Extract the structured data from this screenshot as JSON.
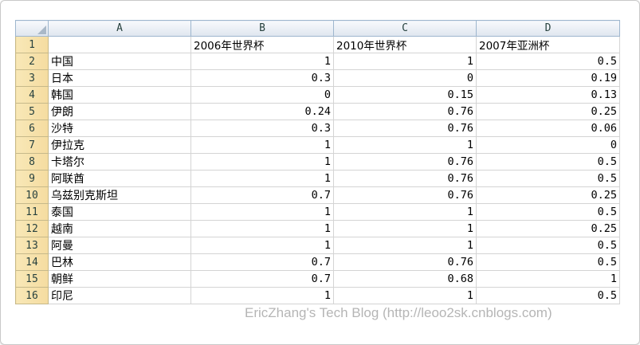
{
  "columns": [
    "A",
    "B",
    "C",
    "D"
  ],
  "header_row": {
    "row_number": "1",
    "cells": [
      "",
      "2006年世界杯",
      "2010年世界杯",
      "2007年亚洲杯"
    ]
  },
  "rows": [
    {
      "n": "2",
      "a": "中国",
      "b": "1",
      "c": "1",
      "d": "0.5"
    },
    {
      "n": "3",
      "a": "日本",
      "b": "0.3",
      "c": "0",
      "d": "0.19"
    },
    {
      "n": "4",
      "a": "韩国",
      "b": "0",
      "c": "0.15",
      "d": "0.13"
    },
    {
      "n": "5",
      "a": "伊朗",
      "b": "0.24",
      "c": "0.76",
      "d": "0.25"
    },
    {
      "n": "6",
      "a": "沙特",
      "b": "0.3",
      "c": "0.76",
      "d": "0.06"
    },
    {
      "n": "7",
      "a": "伊拉克",
      "b": "1",
      "c": "1",
      "d": "0"
    },
    {
      "n": "8",
      "a": "卡塔尔",
      "b": "1",
      "c": "0.76",
      "d": "0.5"
    },
    {
      "n": "9",
      "a": "阿联酋",
      "b": "1",
      "c": "0.76",
      "d": "0.5"
    },
    {
      "n": "10",
      "a": "乌兹别克斯坦",
      "b": "0.7",
      "c": "0.76",
      "d": "0.25"
    },
    {
      "n": "11",
      "a": "泰国",
      "b": "1",
      "c": "1",
      "d": "0.5"
    },
    {
      "n": "12",
      "a": "越南",
      "b": "1",
      "c": "1",
      "d": "0.25"
    },
    {
      "n": "13",
      "a": "阿曼",
      "b": "1",
      "c": "1",
      "d": "0.5"
    },
    {
      "n": "14",
      "a": "巴林",
      "b": "0.7",
      "c": "0.76",
      "d": "0.5"
    },
    {
      "n": "15",
      "a": "朝鲜",
      "b": "0.7",
      "c": "0.68",
      "d": "1"
    },
    {
      "n": "16",
      "a": "印尼",
      "b": "1",
      "c": "1",
      "d": "0.5"
    }
  ],
  "watermark": "EricZhang's Tech Blog (http://leoo2sk.cnblogs.com)"
}
